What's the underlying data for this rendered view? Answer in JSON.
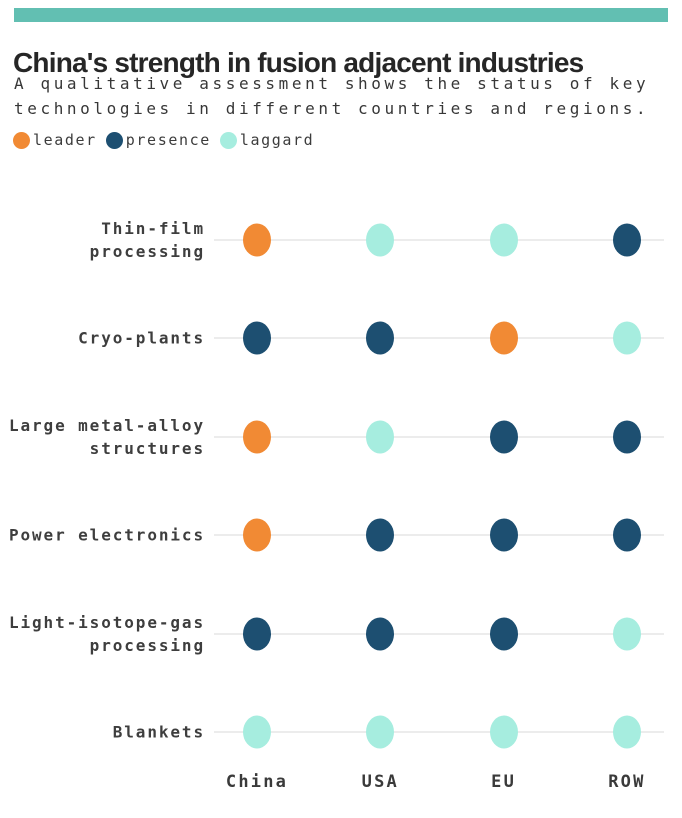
{
  "accent_bar_color": "#62bfb2",
  "header": {
    "title": "China's strength in fusion adjacent industries",
    "subtitle_line1": "A qualitative assessment shows the status of key",
    "subtitle_line2": "technologies in different countries and regions."
  },
  "legend": [
    {
      "label": "leader",
      "status": "leader"
    },
    {
      "label": "presence",
      "status": "presence"
    },
    {
      "label": "laggard",
      "status": "laggard"
    }
  ],
  "chart_data": {
    "type": "dot-matrix",
    "title": "China's strength in fusion adjacent industries",
    "subtitle": "A qualitative assessment shows the status of key technologies in different countries and regions.",
    "legend_position": "top-left",
    "grid": "horizontal row lines",
    "status_colors": {
      "leader": "#f18a34",
      "presence": "#1d4f71",
      "laggard": "#a6eddf"
    },
    "columns": [
      "China",
      "USA",
      "EU",
      "ROW"
    ],
    "rows": [
      {
        "label": "Thin-film\nprocessing",
        "values": [
          "leader",
          "laggard",
          "laggard",
          "presence"
        ]
      },
      {
        "label": "Cryo-plants",
        "values": [
          "presence",
          "presence",
          "leader",
          "laggard"
        ]
      },
      {
        "label": "Large metal-alloy\nstructures",
        "values": [
          "leader",
          "laggard",
          "presence",
          "presence"
        ]
      },
      {
        "label": "Power electronics",
        "values": [
          "leader",
          "presence",
          "presence",
          "presence"
        ]
      },
      {
        "label": "Light-isotope-gas\nprocessing",
        "values": [
          "presence",
          "presence",
          "presence",
          "laggard"
        ]
      },
      {
        "label": "Blankets",
        "values": [
          "laggard",
          "laggard",
          "laggard",
          "laggard"
        ]
      }
    ]
  }
}
